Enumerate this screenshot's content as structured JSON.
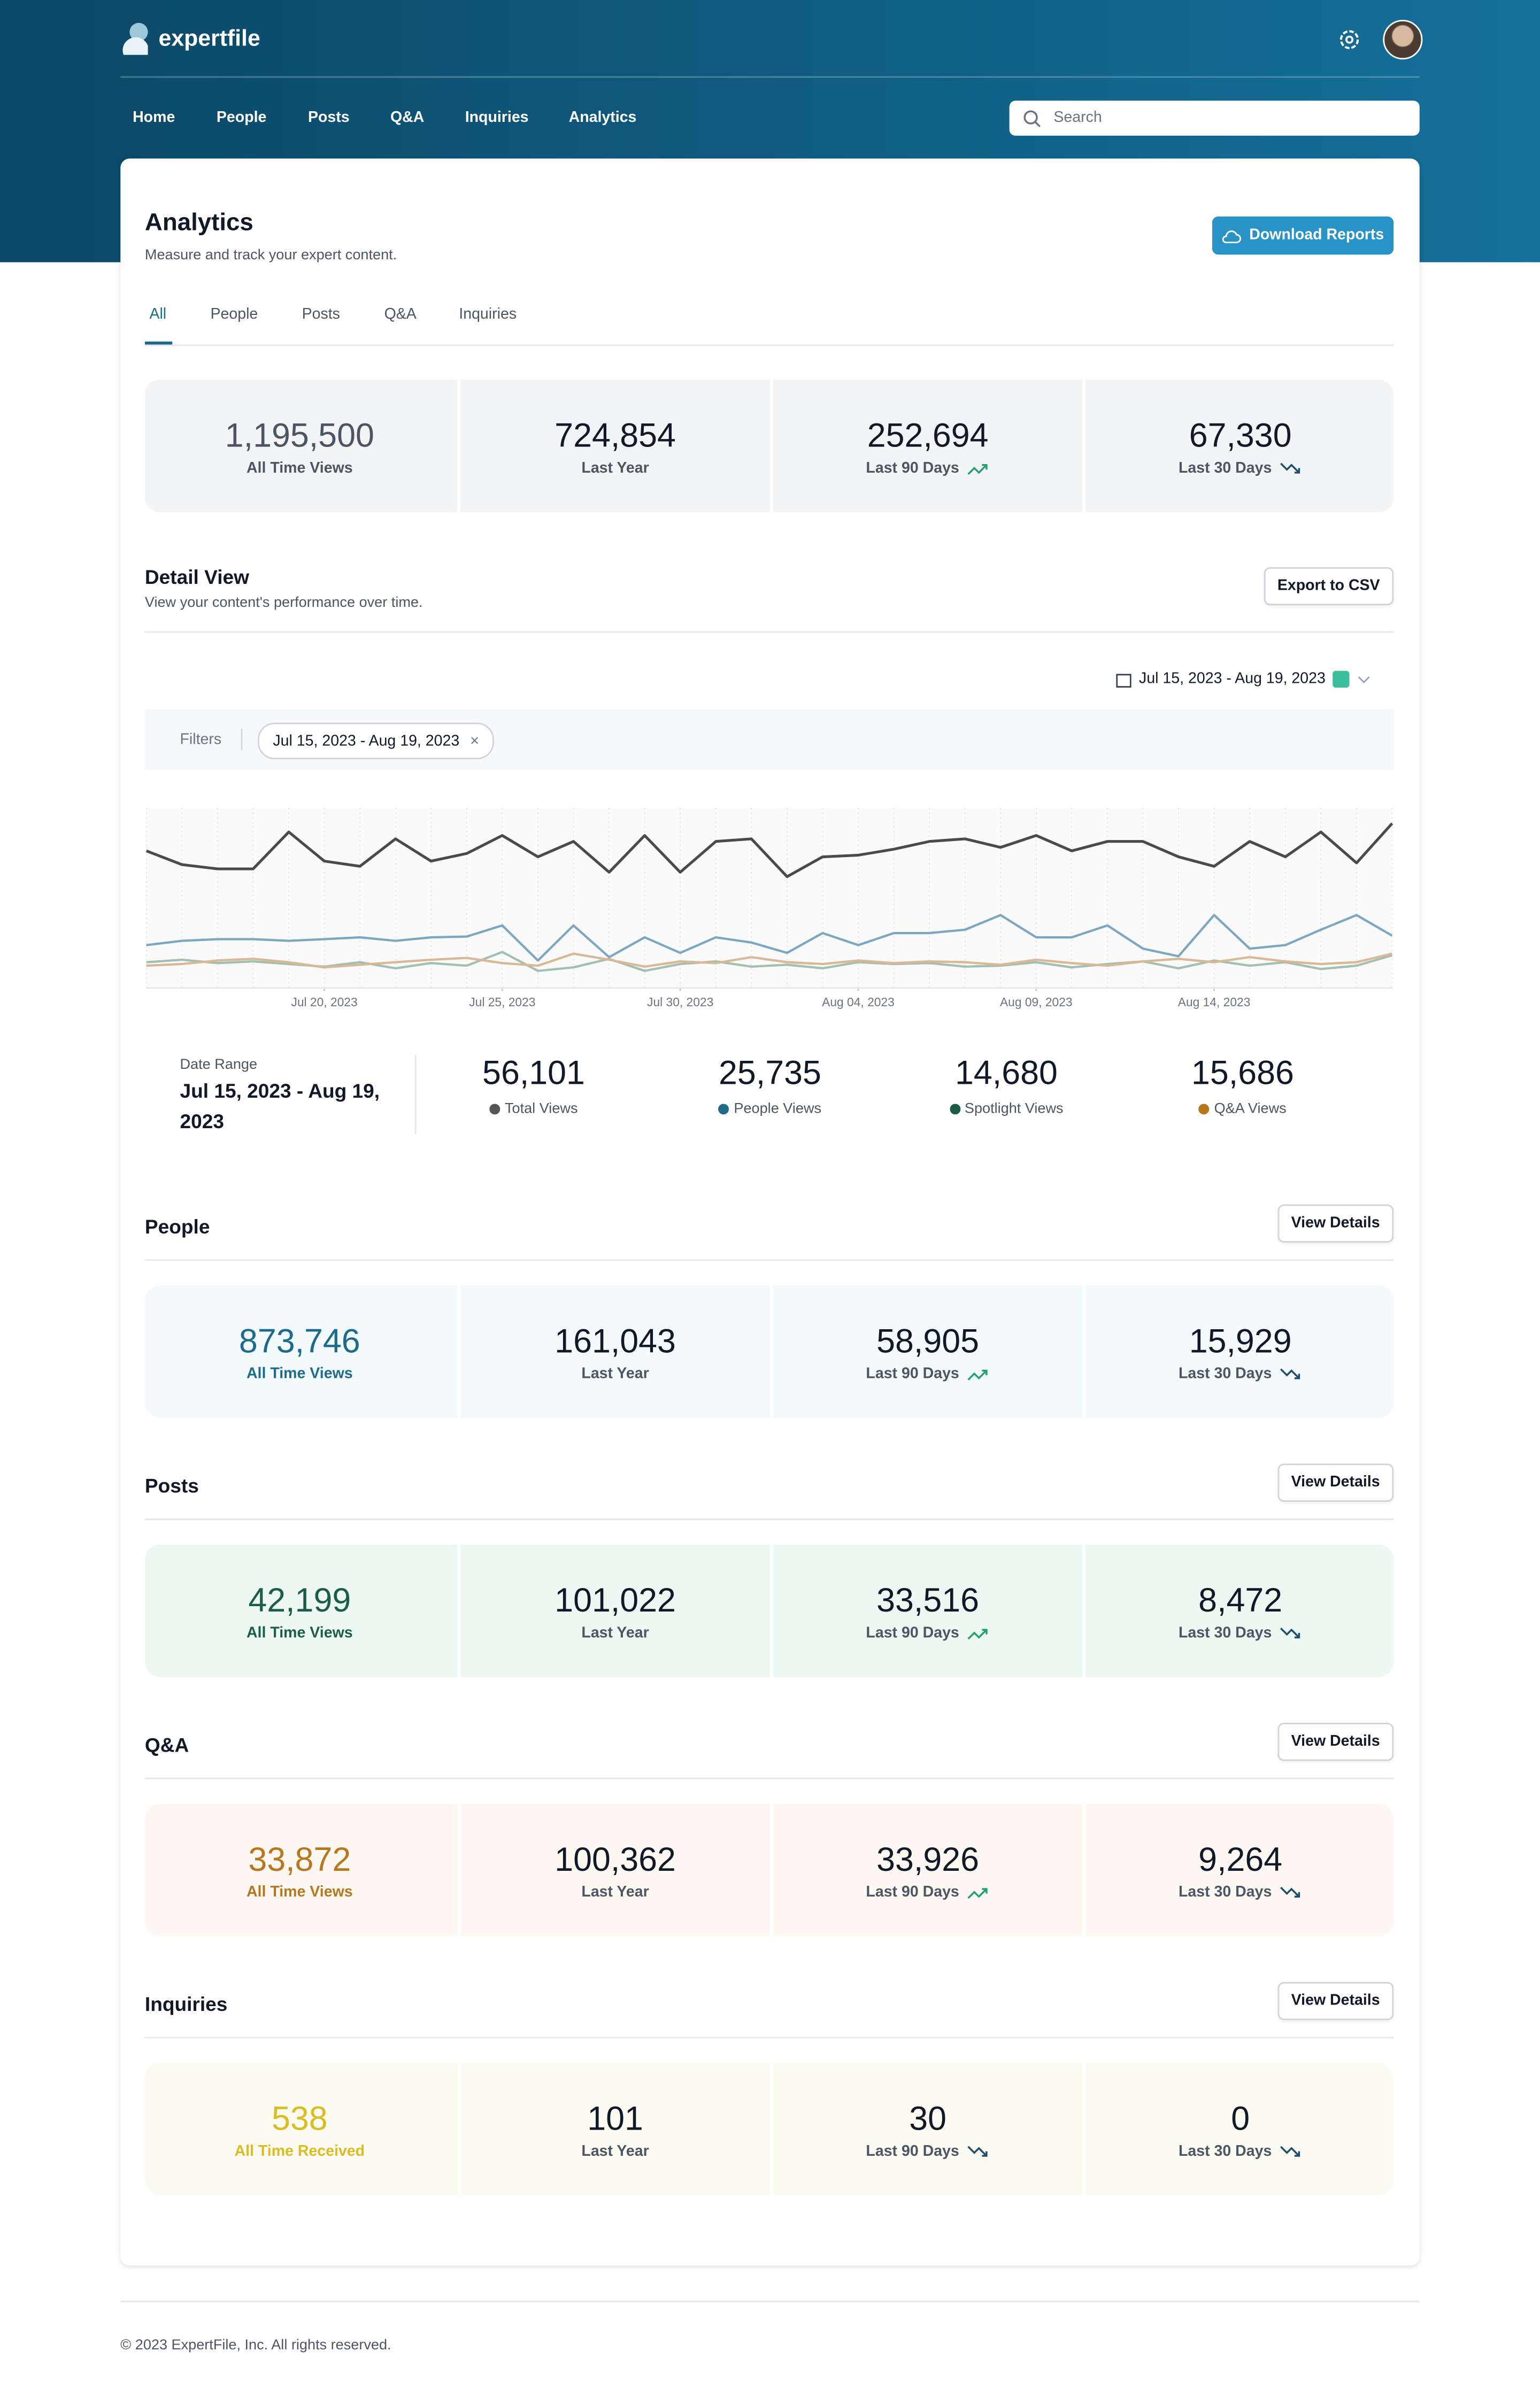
{
  "header": {
    "logo": "expertfile",
    "nav": [
      "Home",
      "People",
      "Posts",
      "Q&A",
      "Inquiries",
      "Analytics"
    ],
    "search": "Search"
  },
  "page": {
    "title": "Analytics",
    "subtitle": "Measure and track your expert content.",
    "button": "Download Reports",
    "tabs": [
      "All",
      "People",
      "Posts",
      "Q&A",
      "Inquiries"
    ]
  },
  "summary": [
    {
      "value": "1,195,500",
      "label": "All Time Views"
    },
    {
      "value": "724,854",
      "label": "Last Year"
    },
    {
      "value": "252,694",
      "label": "Last 90 Days",
      "trend": "up"
    },
    {
      "value": "67,330",
      "label": "Last 30 Days",
      "trend": "down"
    }
  ],
  "detail": {
    "title": "Detail View",
    "subtitle": "View your content's performance over time.",
    "button": "Export to CSV",
    "date_picker": "Jul 15, 2023 - Aug 19, 2023",
    "filters": "Filters",
    "chip": "Jul 15, 2023 - Aug 19, 2023",
    "range_label": "Date Range",
    "range": "Jul 15, 2023 - Aug 19, 2023",
    "stats": [
      {
        "value": "56,101",
        "label": "Total Views",
        "color": "#555555"
      },
      {
        "value": "25,735",
        "label": "People Views",
        "color": "#1e6a8a"
      },
      {
        "value": "14,680",
        "label": "Spotlight Views",
        "color": "#1a5e4a"
      },
      {
        "value": "15,686",
        "label": "Q&A Views",
        "color": "#b8761f"
      }
    ]
  },
  "chart_data": {
    "type": "line",
    "ylim": [
      0,
      2100
    ],
    "x": [
      "2023-07-15",
      "2023-07-16",
      "2023-07-17",
      "2023-07-18",
      "2023-07-19",
      "2023-07-20",
      "2023-07-21",
      "2023-07-22",
      "2023-07-23",
      "2023-07-24",
      "2023-07-25",
      "2023-07-26",
      "2023-07-27",
      "2023-07-28",
      "2023-07-29",
      "2023-07-30",
      "2023-07-31",
      "2023-08-01",
      "2023-08-02",
      "2023-08-03",
      "2023-08-04",
      "2023-08-05",
      "2023-08-06",
      "2023-08-07",
      "2023-08-08",
      "2023-08-09",
      "2023-08-10",
      "2023-08-11",
      "2023-08-12",
      "2023-08-13",
      "2023-08-14",
      "2023-08-15",
      "2023-08-16",
      "2023-08-17",
      "2023-08-18",
      "2023-08-19"
    ],
    "xticks": [
      {
        "value": "2023-07-20",
        "label": "Jul 20, 2023"
      },
      {
        "value": "2023-07-25",
        "label": "Jul 25, 2023"
      },
      {
        "value": "2023-07-30",
        "label": "Jul 30, 2023"
      },
      {
        "value": "2023-08-04",
        "label": "Aug 04, 2023"
      },
      {
        "value": "2023-08-09",
        "label": "Aug 09, 2023"
      },
      {
        "value": "2023-08-14",
        "label": "Aug 14, 2023"
      }
    ],
    "series": [
      {
        "name": "Total Views",
        "color": "#4a4a4a",
        "values": [
          1600,
          1440,
          1390,
          1390,
          1820,
          1480,
          1420,
          1740,
          1480,
          1570,
          1780,
          1530,
          1710,
          1350,
          1780,
          1350,
          1710,
          1740,
          1300,
          1530,
          1550,
          1620,
          1710,
          1740,
          1640,
          1780,
          1600,
          1710,
          1710,
          1530,
          1420,
          1710,
          1530,
          1820,
          1460,
          1920
        ]
      },
      {
        "name": "People Views",
        "color": "#7ba7c0",
        "values": [
          500,
          550,
          570,
          570,
          550,
          570,
          590,
          550,
          590,
          600,
          730,
          320,
          730,
          360,
          590,
          410,
          590,
          530,
          410,
          640,
          500,
          640,
          640,
          680,
          850,
          590,
          590,
          730,
          460,
          370,
          850,
          460,
          500,
          680,
          850,
          610
        ]
      },
      {
        "name": "Spotlight Views",
        "color": "#a3bfb0",
        "values": [
          300,
          330,
          290,
          310,
          280,
          250,
          300,
          230,
          290,
          260,
          420,
          200,
          240,
          340,
          200,
          280,
          310,
          250,
          270,
          230,
          300,
          280,
          290,
          250,
          260,
          300,
          240,
          280,
          310,
          230,
          320,
          260,
          300,
          220,
          260,
          380
        ]
      },
      {
        "name": "Q&A Views",
        "color": "#d8b896",
        "values": [
          260,
          280,
          320,
          340,
          300,
          240,
          270,
          300,
          330,
          350,
          290,
          260,
          400,
          330,
          250,
          310,
          290,
          360,
          300,
          280,
          320,
          290,
          310,
          300,
          270,
          330,
          290,
          260,
          310,
          340,
          300,
          360,
          310,
          280,
          300,
          400
        ]
      }
    ]
  },
  "sections": [
    {
      "title": "People",
      "button": "View Details",
      "bg": "#f3fafb",
      "accent": "#1e6a8a",
      "cards": [
        {
          "value": "873,746",
          "label": "All Time Views"
        },
        {
          "value": "161,043",
          "label": "Last Year"
        },
        {
          "value": "58,905",
          "label": "Last 90 Days",
          "trend": "up"
        },
        {
          "value": "15,929",
          "label": "Last 30 Days",
          "trend": "down"
        }
      ]
    },
    {
      "title": "Posts",
      "button": "View Details",
      "bg": "#edf8f3",
      "accent": "#1a5e4a",
      "cards": [
        {
          "value": "42,199",
          "label": "All Time Views"
        },
        {
          "value": "101,022",
          "label": "Last Year"
        },
        {
          "value": "33,516",
          "label": "Last 90 Days",
          "trend": "up"
        },
        {
          "value": "8,472",
          "label": "Last 30 Days",
          "trend": "down"
        }
      ]
    },
    {
      "title": "Q&A",
      "button": "View Details",
      "bg": "#fdf8f2",
      "accent": "#b8761f",
      "cards": [
        {
          "value": "33,872",
          "label": "All Time Views"
        },
        {
          "value": "100,362",
          "label": "Last Year"
        },
        {
          "value": "33,926",
          "label": "Last 90 Days",
          "trend": "up"
        },
        {
          "value": "9,264",
          "label": "Last 30 Days",
          "trend": "down"
        }
      ]
    },
    {
      "title": "Inquiries",
      "button": "View Details",
      "bg": "#fbfbf1",
      "accent": "#d9bd22",
      "cards": [
        {
          "value": "538",
          "label": "All Time Received"
        },
        {
          "value": "101",
          "label": "Last Year"
        },
        {
          "value": "30",
          "label": "Last 90 Days",
          "trend": "down"
        },
        {
          "value": "0",
          "label": "Last 30 Days",
          "trend": "down"
        }
      ]
    }
  ],
  "footer": "© 2023 ExpertFile, Inc. All rights reserved."
}
